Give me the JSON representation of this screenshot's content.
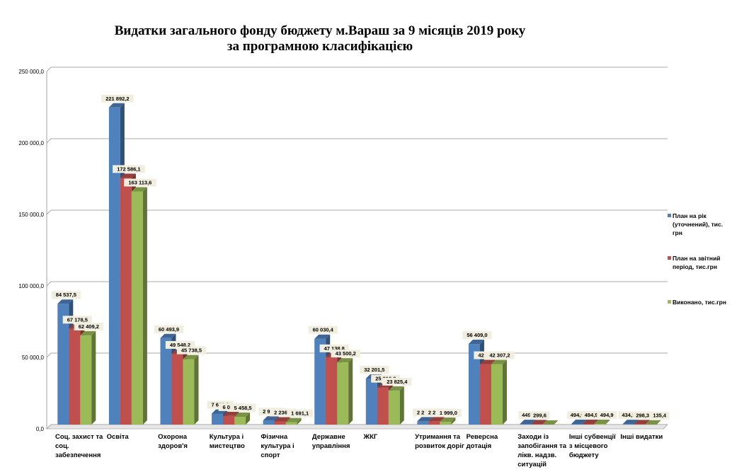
{
  "chart_data": {
    "type": "bar",
    "title": "Видатки загального фонду бюджету м.Вараш за 9 місяців 2019 року",
    "subtitle": "за програмною класифікацією",
    "ylim": [
      0,
      250000
    ],
    "y_ticks": [
      "0,0",
      "50 000,0",
      "100 000,0",
      "150 000,0",
      "200 000,0",
      "250 000,0"
    ],
    "y_tick_values": [
      0,
      50000,
      100000,
      150000,
      200000,
      250000
    ],
    "grid": true,
    "legend_position": "right",
    "categories": [
      [
        "Соц. захист та",
        "соц.",
        "забезпечення"
      ],
      [
        "Освіта"
      ],
      [
        "Охорона",
        "здоров'я"
      ],
      [
        "Культура і",
        "мистецтво"
      ],
      [
        "Фізична",
        "культура і",
        "спорт"
      ],
      [
        "Державне",
        "управління"
      ],
      [
        "ЖКГ"
      ],
      [
        "Утримання та",
        "розвиток доріг"
      ],
      [
        "Реверсна",
        "дотація"
      ],
      [
        "Заходи із",
        "запобігання та",
        "лікв. надзв.",
        "ситуацій"
      ],
      [
        "Інші субвенції",
        "з місцевого",
        "бюджету"
      ],
      [
        "Інші видатки"
      ]
    ],
    "series": [
      {
        "name": "План на рік (уточнений), тис. грн",
        "legend_lines": [
          "План на рік",
          "(уточнений), тис.",
          "грн"
        ],
        "color": "#4f81bd",
        "values": [
          84537.5,
          221892.2,
          60493.9,
          7680.2,
          2927.3,
          60030.4,
          32201.5,
          2283.5,
          56409.0,
          449.6,
          494.9,
          434.1
        ],
        "labels": [
          "84 537,5",
          "221 892,2",
          "60 493,9",
          "7 680,2",
          "2 927,3",
          "60 030,4",
          "32 201,5",
          "2 283,5",
          "56 409,0",
          "449,6",
          "494,9",
          "434,1"
        ]
      },
      {
        "name": "План на звітний період, тис.грн",
        "legend_lines": [
          "План на звітний",
          "період, тис.грн"
        ],
        "color": "#c0504d",
        "values": [
          67178.5,
          172586.1,
          49548.2,
          6041.4,
          2236.5,
          47138.8,
          25916.0,
          2283.5,
          42307.2,
          299.6,
          494.9,
          298.3
        ],
        "labels": [
          "67 178,5",
          "172 586,1",
          "49 548,2",
          "6 041,4",
          "2 236,5",
          "47 138,8",
          "25 916,0",
          "2 283,5",
          "42 307,2",
          "299,6",
          "494,9",
          "298,3"
        ]
      },
      {
        "name": "Виконано, тис.грн",
        "legend_lines": [
          "Виконано, тис.грн"
        ],
        "color": "#9bbb59",
        "values": [
          62409.2,
          163113.6,
          45738.5,
          5458.5,
          1691.1,
          43500.2,
          23825.4,
          1999.0,
          42307.2,
          0,
          494.9,
          135.4
        ],
        "labels": [
          "62 409,2",
          "163 113,6",
          "45 738,5",
          "5 458,5",
          "1 691,1",
          "43 500,2",
          "23 825,4",
          "1 999,0",
          "42 307,2",
          "",
          "494,9",
          "135,4"
        ]
      }
    ]
  }
}
